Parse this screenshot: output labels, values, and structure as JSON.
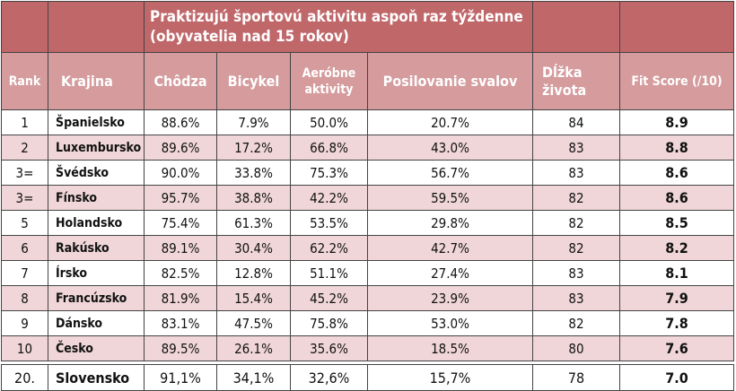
{
  "header": {
    "group_title": "Praktizujú športovú aktivitu aspoň raz týždenne (obyvatelia nad 15 rokov)",
    "columns": [
      "Rank",
      "Krajina",
      "Chôdza",
      "Bicykel",
      "Aeróbne aktivity",
      "Posilovanie svalov",
      "Dĺžka života",
      "Fit Score (/10)"
    ]
  },
  "rows": [
    [
      "1",
      "Španielsko",
      "88.6%",
      "7.9%",
      "50.0%",
      "20.7%",
      "84",
      "8.9"
    ],
    [
      "2",
      "Luxembursko",
      "89.6%",
      "17.2%",
      "66.8%",
      "43.0%",
      "83",
      "8.8"
    ],
    [
      "3=",
      "Švédsko",
      "90.0%",
      "33.8%",
      "75.3%",
      "56.7%",
      "83",
      "8.6"
    ],
    [
      "3=",
      "Fínsko",
      "95.7%",
      "38.8%",
      "42.2%",
      "59.5%",
      "82",
      "8.6"
    ],
    [
      "5",
      "Holandsko",
      "75.4%",
      "61.3%",
      "53.5%",
      "29.8%",
      "82",
      "8.5"
    ],
    [
      "6",
      "Rakúsko",
      "89.1%",
      "30.4%",
      "62.2%",
      "42.7%",
      "82",
      "8.2"
    ],
    [
      "7",
      "Írsko",
      "82.5%",
      "12.8%",
      "51.1%",
      "27.4%",
      "83",
      "8.1"
    ],
    [
      "8",
      "Francúzsko",
      "81.9%",
      "15.4%",
      "45.2%",
      "23.9%",
      "83",
      "7.9"
    ],
    [
      "9",
      "Dánsko",
      "83.1%",
      "47.5%",
      "75.8%",
      "53.0%",
      "82",
      "7.8"
    ],
    [
      "10",
      "Česko",
      "89.5%",
      "26.1%",
      "35.6%",
      "18.5%",
      "80",
      "7.6"
    ]
  ],
  "slovakia": [
    "20.",
    "Slovensko",
    "91,1%",
    "34,1%",
    "32,6%",
    "15,7%",
    "78",
    "7.0"
  ]
}
